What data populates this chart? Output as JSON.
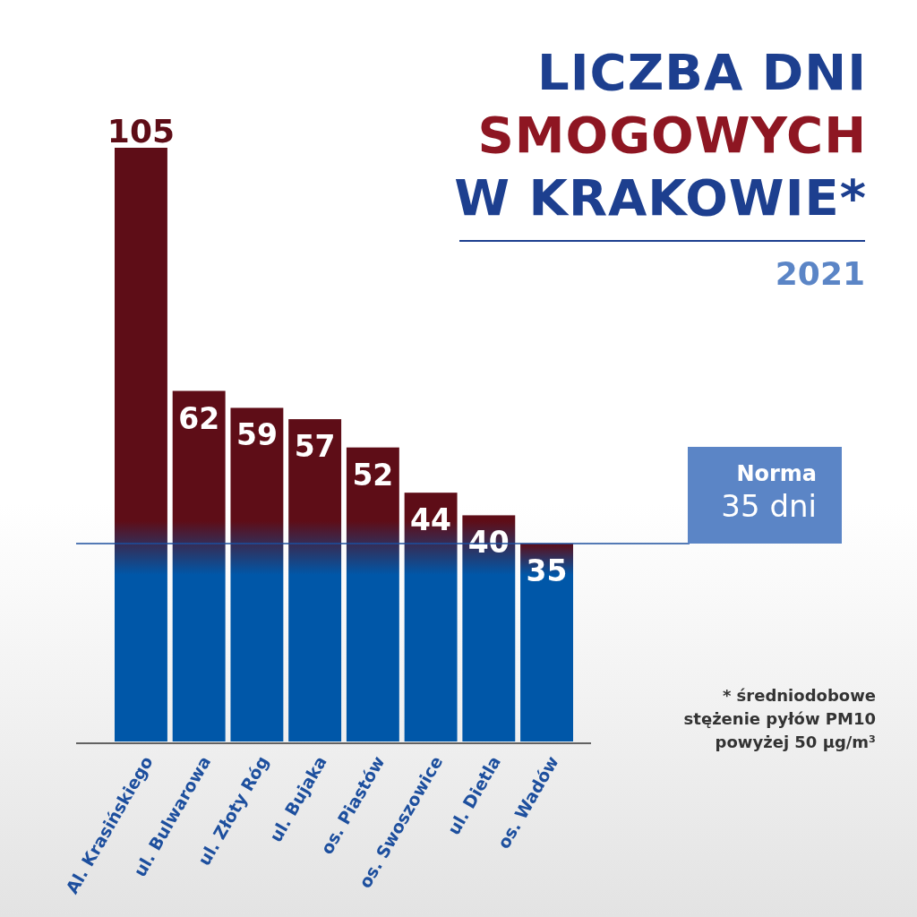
{
  "chart_data": {
    "type": "bar",
    "title": "LICZBA DNI SMOGOWYCH W KRAKOWIE*",
    "subtitle": "2021",
    "categories": [
      "Al. Krasińskiego",
      "ul. Bulwarowa",
      "ul. Złoty Róg",
      "ul. Bujaka",
      "os. Piastów",
      "os. Swoszowice",
      "ul. Dietla",
      "os. Wadów"
    ],
    "values": [
      105,
      62,
      59,
      57,
      52,
      44,
      40,
      35
    ],
    "color": "#5e0d17",
    "data_labels": true,
    "ref_lines": [
      {
        "axis": "y",
        "value": 35,
        "label": "Norma\n35 dni",
        "color": "#1d4f9e"
      }
    ],
    "annotations": [
      "* średniodobowe\nstężenie pyłów PM10\npowyżej 50 µg/m³"
    ]
  }
}
